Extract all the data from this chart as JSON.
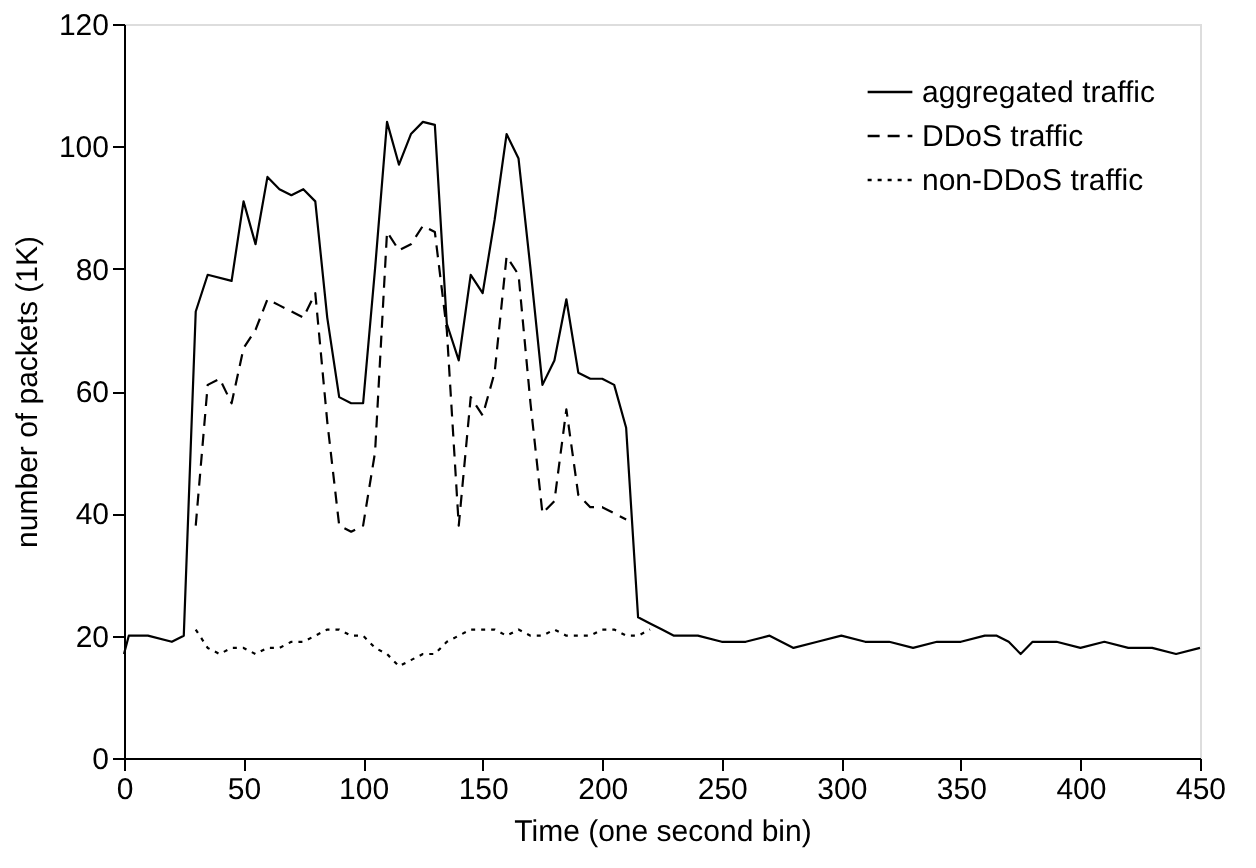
{
  "chart_data": {
    "type": "line",
    "xlabel": "Time (one second bin)",
    "ylabel": "number of packets (1K)",
    "xlim": [
      0,
      450
    ],
    "xticks": [
      0,
      50,
      100,
      150,
      200,
      250,
      300,
      350,
      400,
      450
    ],
    "ylim": [
      0,
      120
    ],
    "yticks": [
      0,
      20,
      40,
      60,
      80,
      100,
      120
    ],
    "grid": false,
    "legend": "top right",
    "marker": "none",
    "series": [
      {
        "name": "aggregated traffic",
        "color": "#000000",
        "line_style": "solid",
        "x": [
          0,
          2,
          10,
          20,
          25,
          30,
          35,
          45,
          50,
          55,
          60,
          65,
          70,
          75,
          80,
          85,
          90,
          95,
          100,
          105,
          110,
          115,
          120,
          125,
          130,
          135,
          140,
          145,
          150,
          155,
          160,
          165,
          170,
          175,
          180,
          185,
          190,
          195,
          200,
          205,
          210,
          215,
          220,
          225,
          230,
          240,
          250,
          260,
          270,
          280,
          290,
          300,
          310,
          320,
          330,
          340,
          350,
          360,
          365,
          370,
          375,
          380,
          390,
          400,
          410,
          420,
          430,
          440,
          450
        ],
        "values": [
          17,
          20,
          20,
          19,
          20,
          73,
          79,
          78,
          91,
          84,
          95,
          93,
          92,
          93,
          91,
          72,
          59,
          58,
          58,
          80,
          104,
          97,
          102,
          104,
          103.5,
          71,
          65,
          79,
          76,
          88,
          102,
          98,
          80,
          61,
          65,
          75,
          63,
          62,
          62,
          61,
          54,
          23,
          22,
          21,
          20,
          20,
          19,
          19,
          20,
          18,
          19,
          20,
          19,
          19,
          18,
          19,
          19,
          20,
          20,
          19,
          17,
          19,
          19,
          18,
          19,
          18,
          18,
          17,
          18
        ]
      },
      {
        "name": "DDoS traffic",
        "color": "#000000",
        "line_style": "dashed",
        "x": [
          30,
          35,
          40,
          45,
          50,
          55,
          60,
          65,
          70,
          75,
          80,
          85,
          90,
          95,
          100,
          105,
          110,
          115,
          120,
          125,
          130,
          135,
          140,
          145,
          150,
          155,
          160,
          165,
          170,
          175,
          180,
          185,
          190,
          195,
          200,
          205,
          210
        ],
        "values": [
          38,
          61,
          62,
          58,
          67,
          70,
          75,
          74,
          73,
          72,
          76,
          55,
          38,
          37,
          38,
          50,
          86,
          83,
          84,
          87,
          86,
          70,
          38,
          59,
          56,
          63,
          82,
          79,
          58,
          40,
          42,
          57,
          43,
          41,
          41,
          40,
          39
        ]
      },
      {
        "name": "non-DDoS traffic",
        "color": "#000000",
        "line_style": "dotted",
        "x": [
          30,
          35,
          40,
          45,
          50,
          55,
          60,
          65,
          70,
          75,
          80,
          85,
          90,
          95,
          100,
          105,
          110,
          115,
          120,
          125,
          130,
          135,
          140,
          145,
          150,
          155,
          160,
          165,
          170,
          175,
          180,
          185,
          190,
          195,
          200,
          205,
          210,
          215,
          220
        ],
        "values": [
          21,
          18,
          17,
          18,
          18,
          17,
          18,
          18,
          19,
          19,
          20,
          21,
          21,
          20,
          20,
          18,
          17,
          15,
          16,
          17,
          17,
          19,
          20,
          21,
          21,
          21,
          20,
          21,
          20,
          20,
          21,
          20,
          20,
          20,
          21,
          21,
          20,
          20,
          21
        ]
      }
    ]
  }
}
